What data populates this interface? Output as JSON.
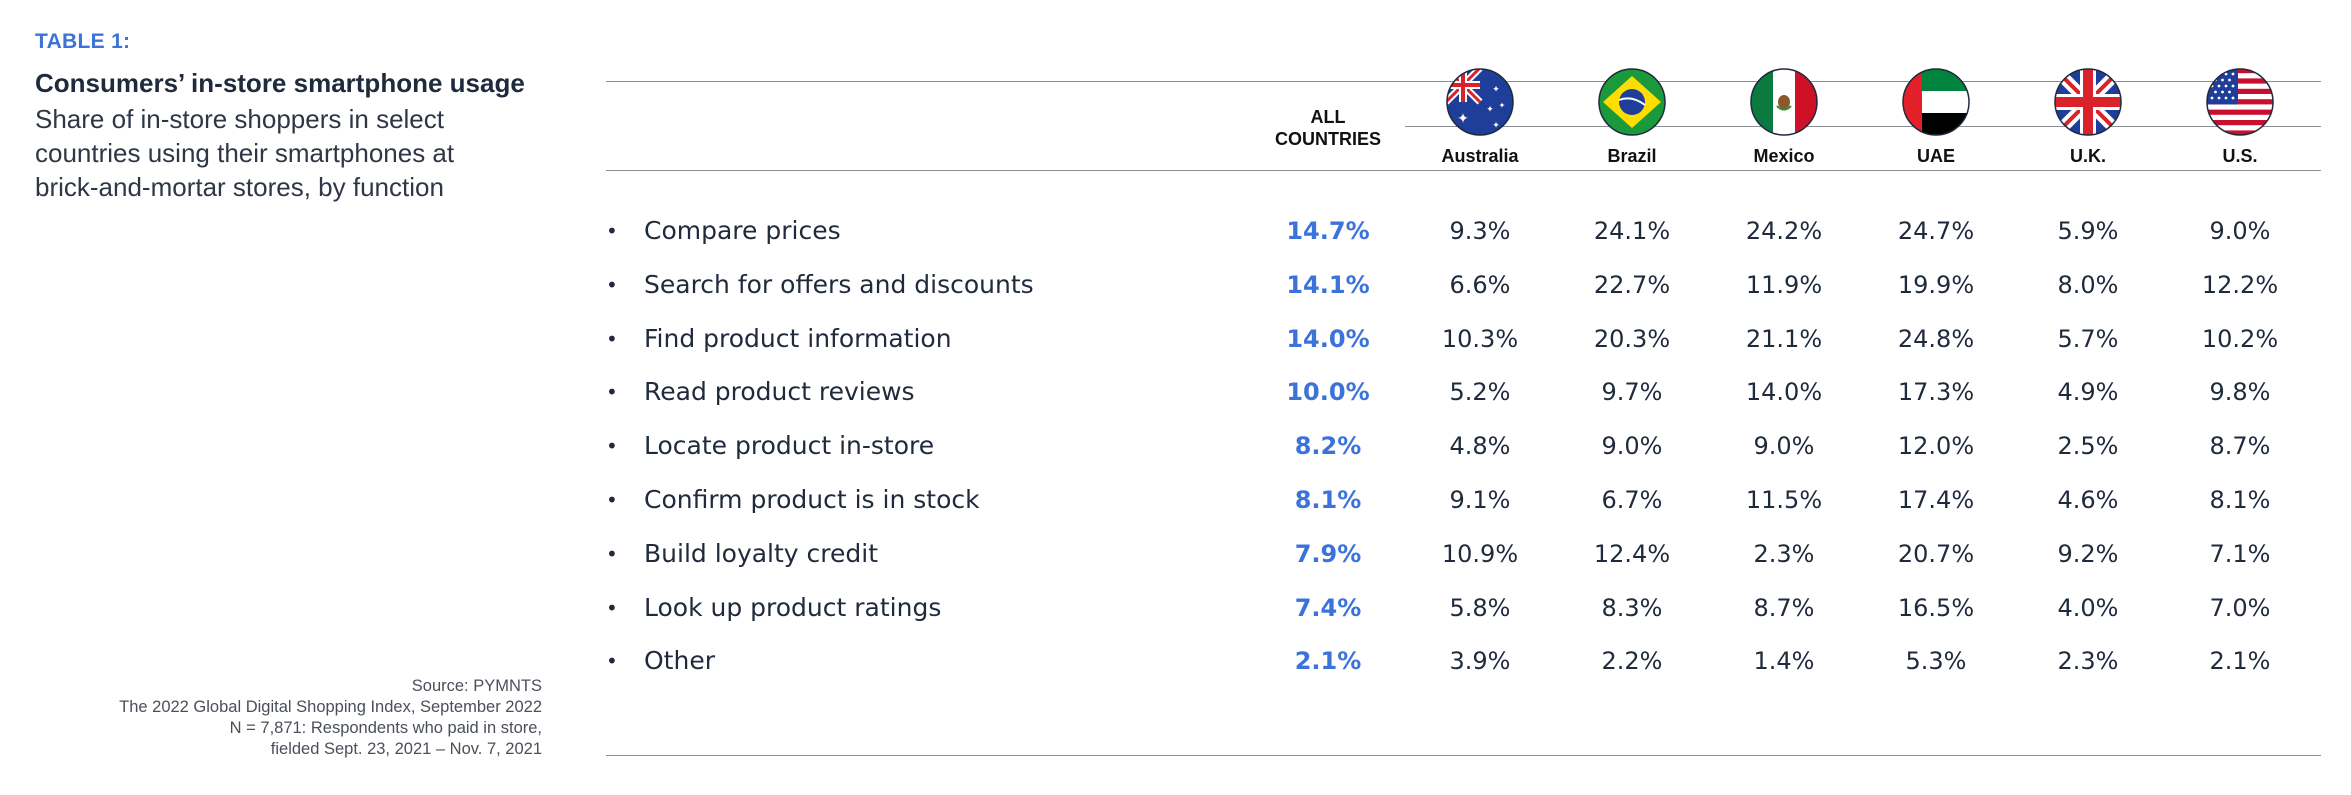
{
  "left": {
    "table_label": "TABLE 1:",
    "title": "Consumers’ in-store smartphone usage",
    "subtitle": "Share of in-store shoppers in select countries using their smartphones at brick-and-mortar stores, by function",
    "source_lines": [
      "Source: PYMNTS",
      "The 2022 Global Digital Shopping Index, September 2022",
      "N = 7,871: Respondents who paid in store,",
      "fielded Sept. 23, 2021 – Nov. 7, 2021"
    ]
  },
  "table": {
    "all_header_lines": [
      "ALL",
      "COUNTRIES"
    ],
    "countries": [
      {
        "name": "Australia",
        "flag": "australia-flag-icon"
      },
      {
        "name": "Brazil",
        "flag": "brazil-flag-icon"
      },
      {
        "name": "Mexico",
        "flag": "mexico-flag-icon"
      },
      {
        "name": "UAE",
        "flag": "uae-flag-icon"
      },
      {
        "name": "U.K.",
        "flag": "uk-flag-icon"
      },
      {
        "name": "U.S.",
        "flag": "us-flag-icon"
      }
    ],
    "rows": [
      {
        "label": "Compare prices",
        "all": "14.7%",
        "values": [
          "9.3%",
          "24.1%",
          "24.2%",
          "24.7%",
          "5.9%",
          "9.0%"
        ]
      },
      {
        "label": "Search for offers and discounts",
        "all": "14.1%",
        "values": [
          "6.6%",
          "22.7%",
          "11.9%",
          "19.9%",
          "8.0%",
          "12.2%"
        ]
      },
      {
        "label": "Find product information",
        "all": "14.0%",
        "values": [
          "10.3%",
          "20.3%",
          "21.1%",
          "24.8%",
          "5.7%",
          "10.2%"
        ]
      },
      {
        "label": "Read product reviews",
        "all": "10.0%",
        "values": [
          "5.2%",
          "9.7%",
          "14.0%",
          "17.3%",
          "4.9%",
          "9.8%"
        ]
      },
      {
        "label": "Locate product in-store",
        "all": "8.2%",
        "values": [
          "4.8%",
          "9.0%",
          "9.0%",
          "12.0%",
          "2.5%",
          "8.7%"
        ]
      },
      {
        "label": "Confirm product is in stock",
        "all": "8.1%",
        "values": [
          "9.1%",
          "6.7%",
          "11.5%",
          "17.4%",
          "4.6%",
          "8.1%"
        ]
      },
      {
        "label": "Build loyalty credit",
        "all": "7.9%",
        "values": [
          "10.9%",
          "12.4%",
          "2.3%",
          "20.7%",
          "9.2%",
          "7.1%"
        ]
      },
      {
        "label": "Look up product ratings",
        "all": "7.4%",
        "values": [
          "5.8%",
          "8.3%",
          "8.7%",
          "16.5%",
          "4.0%",
          "7.0%"
        ]
      },
      {
        "label": "Other",
        "all": "2.1%",
        "values": [
          "3.9%",
          "2.2%",
          "1.4%",
          "5.3%",
          "2.3%",
          "2.1%"
        ]
      }
    ],
    "bullet": "•"
  },
  "colors": {
    "accent": "#3b73db",
    "text": "#1f2a3c",
    "rule": "#8a8f98"
  }
}
